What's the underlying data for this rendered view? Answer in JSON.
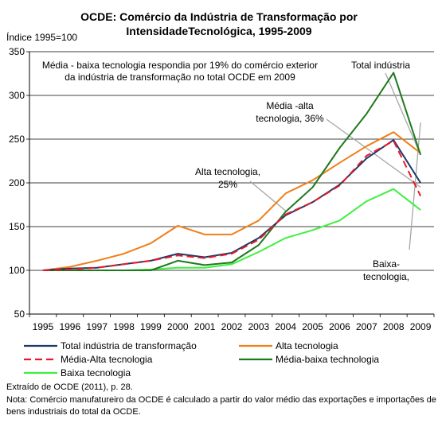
{
  "title_line1": "OCDE: Comércio da Indústria de Transformação por",
  "title_line2": "IntensidadeTecnológica, 1995-2009",
  "ylabel": "Índice 1995=100",
  "annotation_top_line1": "Média - baixa tecnologia respondia por 19% do comércio exterior",
  "annotation_top_line2": "da indústria de transformação no total OCDE em  2009",
  "label_total": "Total indústria",
  "label_media_alta_line1": "Média -alta",
  "label_media_alta_line2": "tecnologia, 36%",
  "label_alta_line1": "Alta tecnologia,",
  "label_alta_line2": "25%",
  "label_baixa_line1": "Baixa-",
  "label_baixa_line2": "tecnologia,",
  "source": "Extraído de OCDE (2011), p. 28.",
  "note_line1": "Nota: Comércio manufatureiro da OCDE é calculado a partir do valor médio das exportações e importações de",
  "note_line2": "bens industriais do total da OCDE.",
  "colors": {
    "total": "#1f3864",
    "alta": "#f07f1a",
    "media_alta": "#e8192c",
    "media_baixa": "#1e7a1e",
    "baixa": "#3ef03e",
    "callout": "#a6a6a6"
  },
  "chart_data": {
    "type": "line",
    "x": [
      1995,
      1996,
      1997,
      1998,
      1999,
      2000,
      2001,
      2002,
      2003,
      2004,
      2005,
      2006,
      2007,
      2008,
      2009
    ],
    "ylim": [
      50,
      350
    ],
    "yticks": [
      50,
      100,
      150,
      200,
      250,
      300,
      350
    ],
    "grid": "horizontal",
    "legend_position": "bottom",
    "series": [
      {
        "name": "Total indústria de transformação",
        "key": "total",
        "dash": false,
        "values": [
          100,
          102,
          103,
          107,
          111,
          119,
          115,
          120,
          137,
          163,
          178,
          198,
          228,
          249,
          200
        ]
      },
      {
        "name": "Alta tecnologia",
        "key": "alta",
        "dash": false,
        "values": [
          100,
          104,
          111,
          119,
          131,
          151,
          141,
          141,
          157,
          188,
          203,
          223,
          242,
          258,
          234
        ]
      },
      {
        "name": "Média-Alta tecnologia",
        "key": "media_alta",
        "dash": true,
        "values": [
          100,
          101,
          103,
          107,
          111,
          117,
          114,
          119,
          135,
          164,
          178,
          197,
          231,
          248,
          185
        ]
      },
      {
        "name": "Média-baixa technologia",
        "key": "media_baixa",
        "dash": false,
        "values": [
          100,
          100,
          100,
          100,
          100,
          111,
          106,
          109,
          129,
          167,
          195,
          240,
          279,
          326,
          232
        ]
      },
      {
        "name": "Baixa tecnologia",
        "key": "baixa",
        "dash": false,
        "values": [
          100,
          100,
          100,
          100,
          101,
          103,
          103,
          107,
          121,
          137,
          146,
          157,
          179,
          193,
          169
        ]
      }
    ]
  }
}
